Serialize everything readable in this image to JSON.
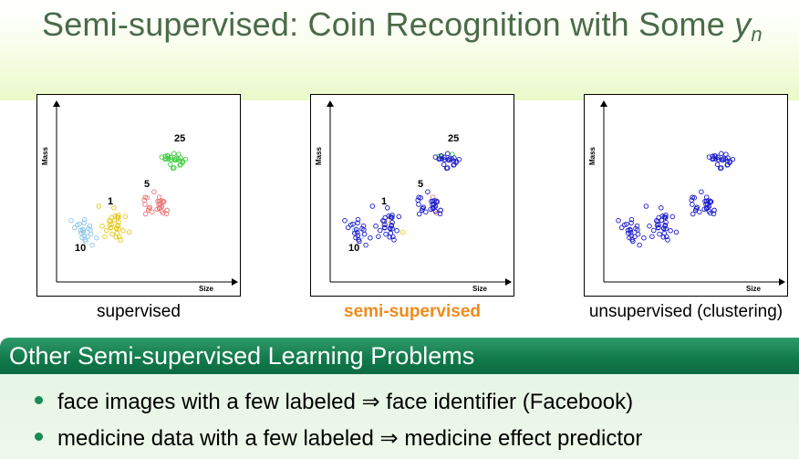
{
  "title": {
    "text_main": "Semi-supervised: Coin Recognition with Some ",
    "var": "y",
    "sub": "n"
  },
  "chart_data": [
    {
      "type": "scatter",
      "xlabel": "Size",
      "ylabel": "Mass",
      "caption": "supervised",
      "coin_labels": [
        "1",
        "5",
        "10",
        "25"
      ]
    },
    {
      "type": "scatter",
      "xlabel": "Size",
      "ylabel": "Mass",
      "caption": "semi-supervised",
      "coin_labels": [
        "1",
        "5",
        "10",
        "25"
      ]
    },
    {
      "type": "scatter",
      "xlabel": "Size",
      "ylabel": "Mass",
      "caption": "unsupervised (clustering)",
      "coin_labels": []
    }
  ],
  "colors": {
    "1": "#e8c81a",
    "5": "#e87878",
    "10": "#8cc4e8",
    "25": "#3ccc3c",
    "unlabeled": "#1a1acc",
    "accent": "#f08a1a"
  },
  "section": {
    "title": "Other Semi-supervised Learning Problems",
    "bullets": [
      "face images with a few labeled ⇒ face identifier (Facebook)",
      "medicine data with a few labeled ⇒ medicine effect predictor"
    ]
  }
}
